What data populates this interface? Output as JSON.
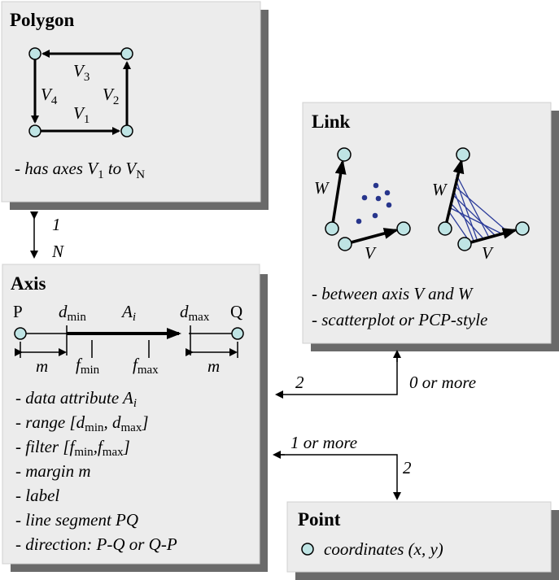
{
  "polygon": {
    "title": "Polygon",
    "edge_labels": {
      "v1": "V",
      "v2": "V",
      "v3": "V",
      "v4": "V",
      "s1": "1",
      "s2": "2",
      "s3": "3",
      "s4": "4"
    },
    "desc": "- has axes V",
    "desc_sub1": "1",
    "desc_to": " to V",
    "desc_subN": "N"
  },
  "axis": {
    "title": "Axis",
    "p_label": "P",
    "q_label": "Q",
    "dmin": "d",
    "dmin_sub": "min",
    "dmax": "d",
    "dmax_sub": "max",
    "ai": "A",
    "ai_sub": "i",
    "fmin": "f",
    "fmin_sub": "min",
    "fmax": "f",
    "fmax_sub": "max",
    "m_left": "m",
    "m_right": "m",
    "items": [
      "- data attribute A",
      "- range [d",
      "- filter [f",
      "- margin m",
      "- label",
      "- line segment PQ",
      "- direction: P-Q or Q-P"
    ],
    "item1_sub": "i",
    "item2": {
      "sub1": "min",
      "mid": ", d",
      "sub2": "max",
      "end": "]"
    },
    "item3": {
      "sub1": "min",
      "mid": ",f",
      "sub2": "max",
      "end": "]"
    }
  },
  "link": {
    "title": "Link",
    "w_label": "W",
    "v_label": "V",
    "desc1": "- between axis V and W",
    "desc2": "- scatterplot or PCP-style"
  },
  "point": {
    "title": "Point",
    "desc": "coordinates (x, y)"
  },
  "relations": {
    "polygon_axis_top": "1",
    "polygon_axis_bottom": "N",
    "axis_link_axis_side": "2",
    "axis_link_link_side": "0 or more",
    "axis_point_axis_side": "1 or more",
    "axis_point_point_side": "2"
  },
  "colors": {
    "box_fill": "#ececec",
    "shadow": "#6a6a6a",
    "node_fill": "#bfe4e4",
    "scatter_dot": "#27358c",
    "pcp_line": "#2c3c9a"
  }
}
